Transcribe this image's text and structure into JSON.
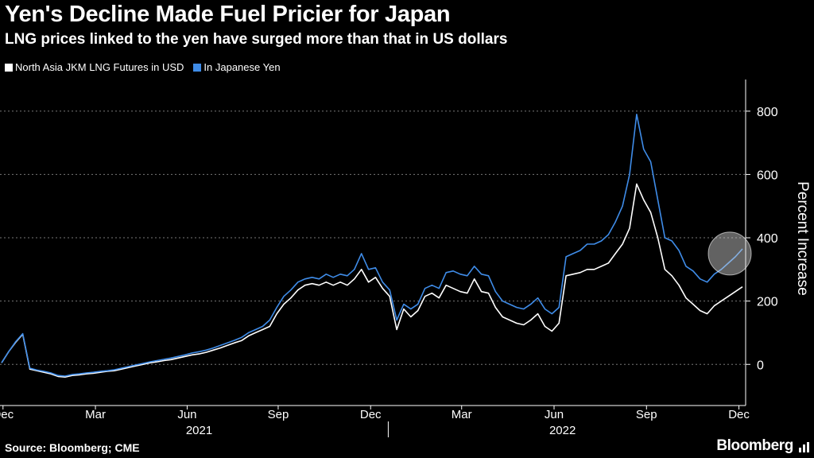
{
  "chart_data": {
    "type": "line",
    "title": "Yen's Decline Made Fuel Pricier for Japan",
    "subtitle": "LNG prices linked to the yen have surged more than that in US dollars",
    "ylabel": "Percent Increase",
    "ylim": [
      -130,
      900
    ],
    "yticks": [
      0,
      200,
      400,
      600,
      800
    ],
    "xlim": [
      0,
      105
    ],
    "xticks": [
      {
        "label": "Dec",
        "t": 0.2
      },
      {
        "label": "Mar",
        "t": 13.3
      },
      {
        "label": "Jun",
        "t": 26.3
      },
      {
        "label": "Sep",
        "t": 39.2
      },
      {
        "label": "Dec",
        "t": 52.3
      },
      {
        "label": "Mar",
        "t": 65.2
      },
      {
        "label": "Jun",
        "t": 78.3
      },
      {
        "label": "Sep",
        "t": 91.4
      },
      {
        "label": "Dec",
        "t": 104.5
      }
    ],
    "year_labels": [
      {
        "label": "2021",
        "t": 28.0
      },
      {
        "label": "2022",
        "t": 79.5
      }
    ],
    "year_dividers": [
      54.8
    ],
    "x": [
      0,
      1,
      2,
      3,
      4,
      5,
      6,
      7,
      8,
      9,
      10,
      11,
      12,
      13,
      14,
      15,
      16,
      17,
      18,
      19,
      20,
      21,
      22,
      23,
      24,
      25,
      26,
      27,
      28,
      29,
      30,
      31,
      32,
      33,
      34,
      35,
      36,
      37,
      38,
      39,
      40,
      41,
      42,
      43,
      44,
      45,
      46,
      47,
      48,
      49,
      50,
      51,
      52,
      53,
      54,
      55,
      56,
      57,
      58,
      59,
      60,
      61,
      62,
      63,
      64,
      65,
      66,
      67,
      68,
      69,
      70,
      71,
      72,
      73,
      74,
      75,
      76,
      77,
      78,
      79,
      80,
      81,
      82,
      83,
      84,
      85,
      86,
      87,
      88,
      89,
      90,
      91,
      92,
      93,
      94,
      95,
      96,
      97,
      98,
      99,
      100,
      101,
      102,
      103,
      104,
      105
    ],
    "series": [
      {
        "name": "North Asia JKM LNG Futures in USD",
        "color": "#ffffff",
        "values": [
          5,
          40,
          70,
          95,
          -15,
          -20,
          -25,
          -30,
          -38,
          -40,
          -35,
          -33,
          -30,
          -28,
          -25,
          -22,
          -20,
          -15,
          -10,
          -5,
          0,
          5,
          8,
          12,
          15,
          20,
          25,
          30,
          33,
          38,
          45,
          52,
          60,
          68,
          75,
          90,
          100,
          110,
          120,
          160,
          190,
          210,
          235,
          250,
          255,
          250,
          260,
          250,
          260,
          250,
          270,
          300,
          260,
          275,
          240,
          215,
          110,
          175,
          150,
          170,
          215,
          225,
          210,
          250,
          240,
          230,
          225,
          270,
          230,
          225,
          180,
          150,
          140,
          130,
          125,
          140,
          160,
          120,
          105,
          130,
          280,
          285,
          290,
          300,
          300,
          310,
          320,
          350,
          380,
          430,
          570,
          520,
          480,
          400,
          300,
          280,
          250,
          210,
          190,
          170,
          160,
          185,
          200,
          215,
          230,
          245
        ]
      },
      {
        "name": "In Japanese Yen",
        "color": "#3f8ce8",
        "values": [
          5,
          40,
          72,
          97,
          -12,
          -18,
          -22,
          -27,
          -35,
          -37,
          -32,
          -30,
          -27,
          -25,
          -22,
          -20,
          -17,
          -12,
          -7,
          -2,
          3,
          8,
          12,
          16,
          20,
          25,
          30,
          36,
          40,
          45,
          52,
          60,
          68,
          76,
          85,
          100,
          110,
          120,
          140,
          180,
          215,
          235,
          260,
          270,
          275,
          270,
          285,
          275,
          285,
          280,
          300,
          350,
          300,
          305,
          260,
          235,
          140,
          190,
          175,
          190,
          240,
          250,
          240,
          290,
          295,
          285,
          280,
          310,
          285,
          280,
          230,
          200,
          190,
          180,
          175,
          190,
          210,
          175,
          160,
          180,
          340,
          350,
          360,
          380,
          380,
          390,
          410,
          450,
          500,
          600,
          790,
          680,
          640,
          520,
          400,
          390,
          360,
          310,
          295,
          270,
          260,
          285,
          300,
          320,
          340,
          365
        ]
      }
    ],
    "highlight": {
      "t": 103.2,
      "value": 350,
      "color": "#d9d9d9"
    }
  },
  "legend": [
    {
      "label": "North Asia JKM LNG Futures in USD",
      "color": "#ffffff"
    },
    {
      "label": "In Japanese Yen",
      "color": "#3f8ce8"
    }
  ],
  "footer": {
    "source": "Source: Bloomberg; CME",
    "brand": "Bloomberg"
  }
}
